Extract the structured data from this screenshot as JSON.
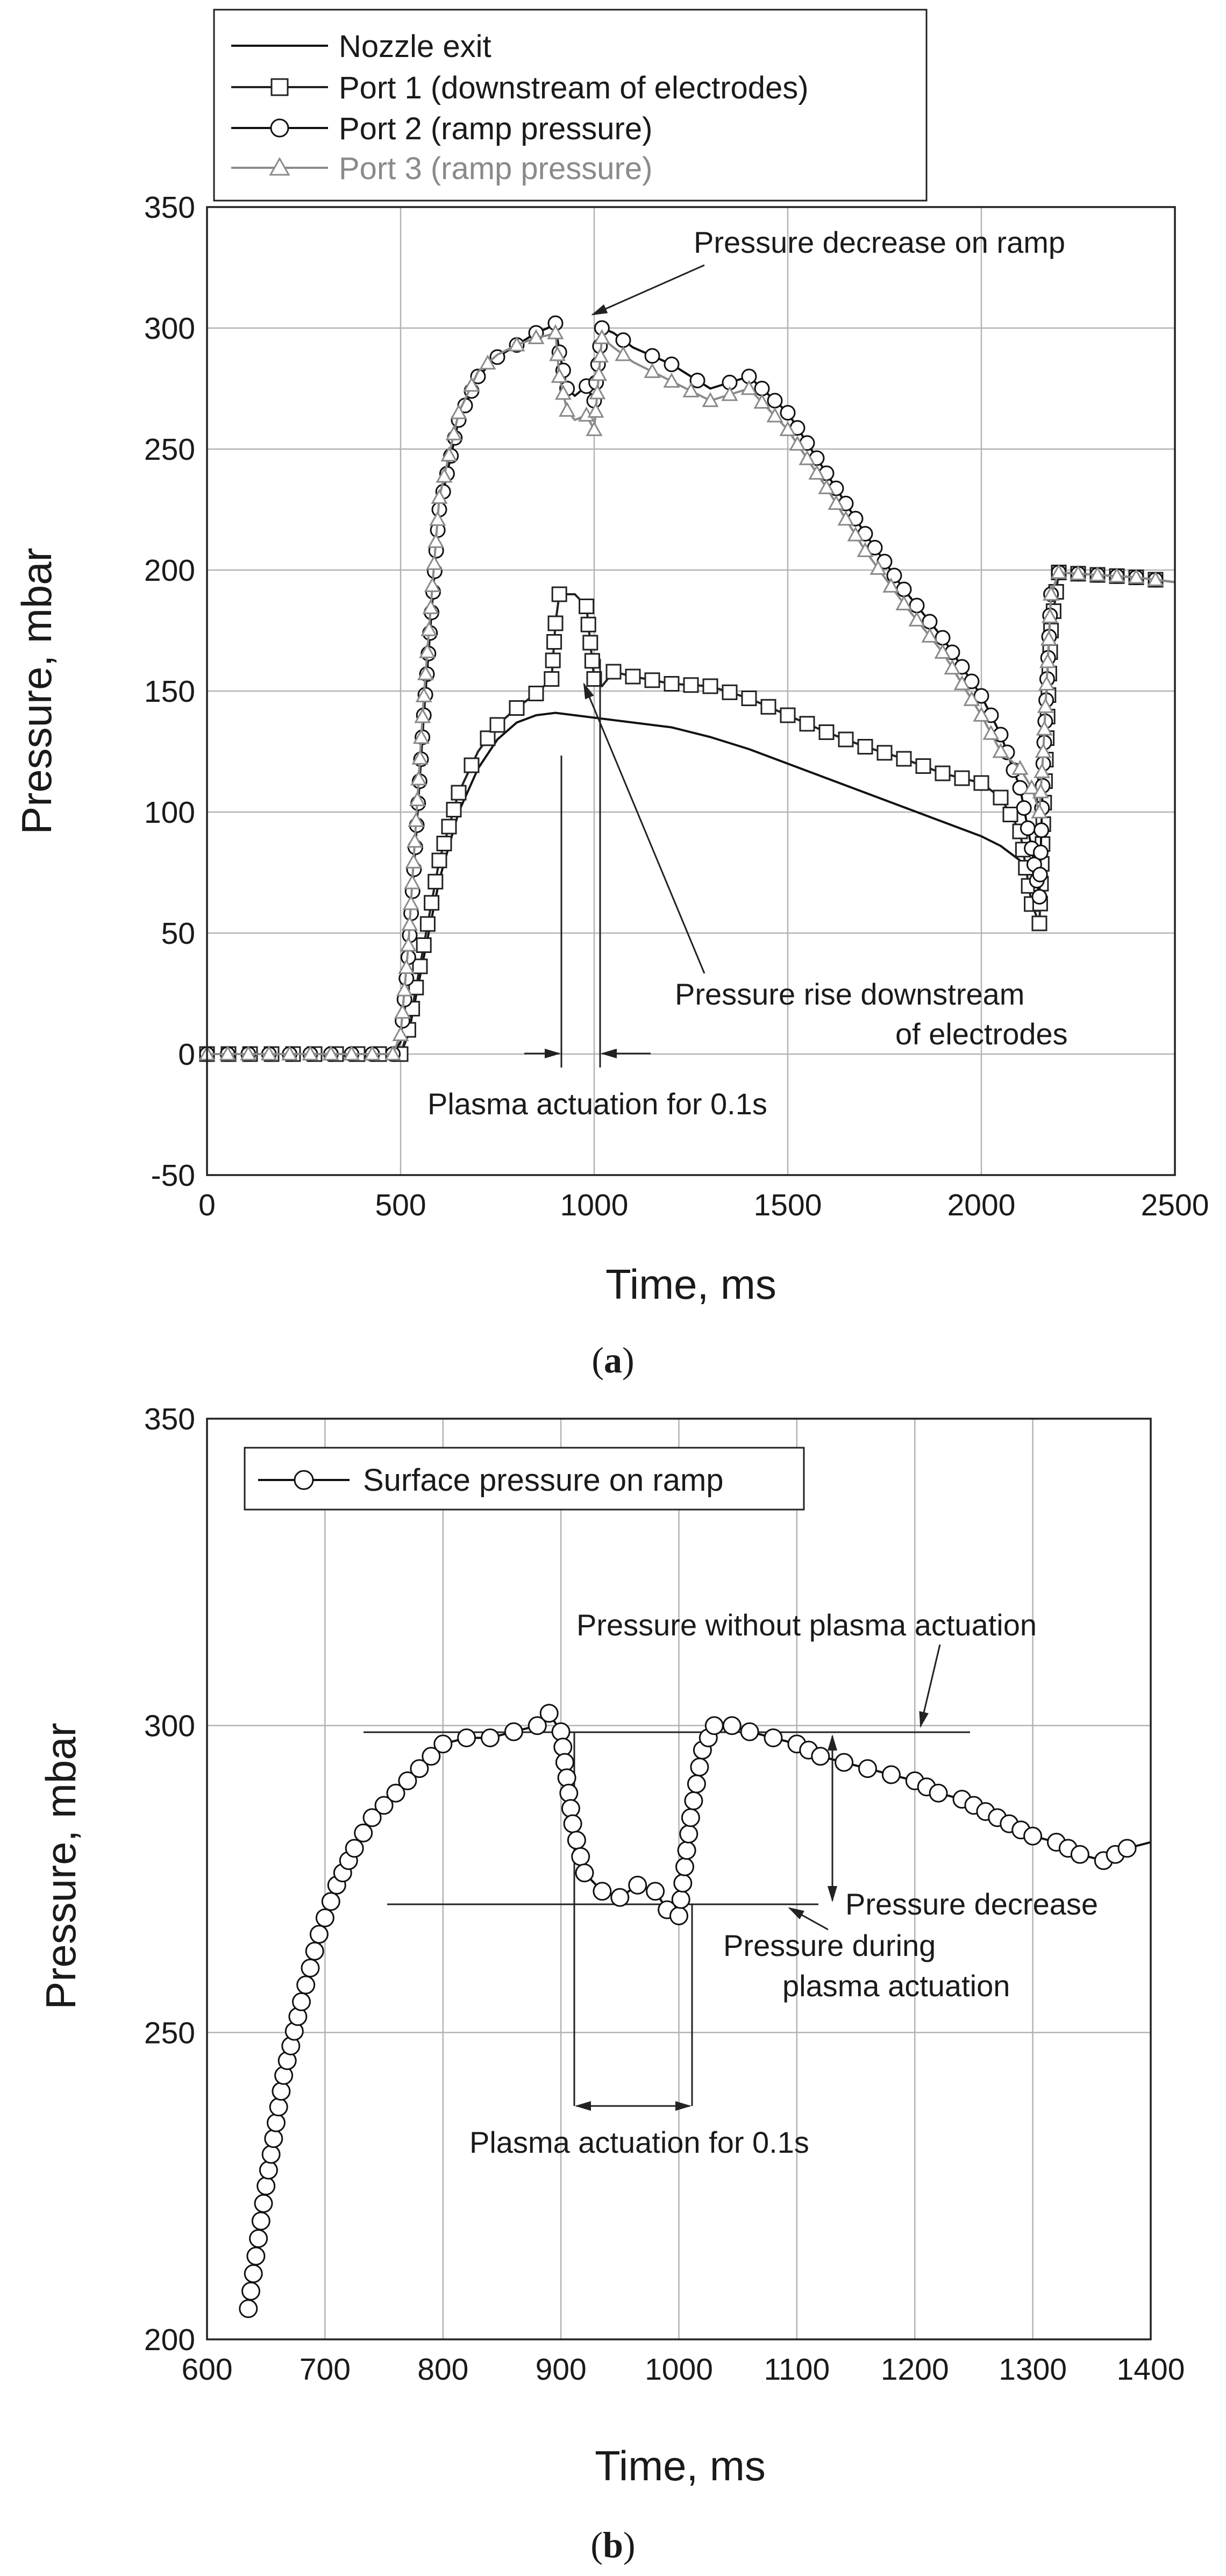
{
  "chart_data": [
    {
      "type": "line",
      "caption_letter": "a",
      "xlabel": "Time, ms",
      "ylabel": "Pressure, mbar",
      "xlim": [
        0,
        2500
      ],
      "ylim": [
        -50,
        350
      ],
      "xticks": [
        0,
        500,
        1000,
        1500,
        2000,
        2500
      ],
      "yticks": [
        -50,
        0,
        50,
        100,
        150,
        200,
        250,
        300,
        350
      ],
      "grid": true,
      "legend_position": "top-left outside",
      "series": [
        {
          "name": "Nozzle exit",
          "marker": "none",
          "color": "#111111",
          "x": [
            0,
            500,
            520,
            560,
            600,
            650,
            700,
            750,
            800,
            850,
            900,
            950,
            1000,
            1100,
            1200,
            1300,
            1400,
            1500,
            1600,
            1700,
            1800,
            1900,
            2000,
            2050,
            2100,
            2120
          ],
          "y": [
            0,
            0,
            8,
            40,
            72,
            100,
            118,
            130,
            137,
            140,
            141,
            140,
            139,
            137,
            135,
            131,
            126,
            120,
            114,
            108,
            102,
            96,
            90,
            86,
            80,
            76
          ]
        },
        {
          "name": "Port 1 (downstream of electrodes)",
          "marker": "square",
          "color": "#222222",
          "x": [
            0,
            500,
            520,
            560,
            600,
            650,
            700,
            750,
            800,
            850,
            890,
            900,
            910,
            950,
            980,
            1000,
            1020,
            1050,
            1100,
            1200,
            1300,
            1400,
            1500,
            1600,
            1700,
            1800,
            1900,
            2000,
            2050,
            2100,
            2130,
            2150,
            2160,
            2180,
            2200,
            2300,
            2400,
            2500
          ],
          "y": [
            0,
            0,
            10,
            45,
            80,
            108,
            125,
            136,
            143,
            149,
            155,
            178,
            190,
            190,
            185,
            155,
            152,
            158,
            156,
            153,
            152,
            147,
            140,
            133,
            127,
            122,
            116,
            112,
            106,
            92,
            62,
            54,
            95,
            175,
            199,
            198,
            197,
            195
          ]
        },
        {
          "name": "Port 2 (ramp pressure)",
          "marker": "circle",
          "color": "#111111",
          "x": [
            0,
            480,
            500,
            520,
            560,
            600,
            650,
            700,
            750,
            800,
            850,
            880,
            900,
            910,
            930,
            950,
            980,
            1000,
            1020,
            1050,
            1100,
            1200,
            1300,
            1400,
            1500,
            1600,
            1700,
            1800,
            1900,
            2000,
            2050,
            2100,
            2130,
            2150,
            2160,
            2180,
            2200,
            2300,
            2400,
            2500
          ],
          "y": [
            0,
            0,
            5,
            40,
            140,
            225,
            262,
            280,
            288,
            293,
            298,
            300,
            302,
            290,
            275,
            272,
            276,
            270,
            300,
            298,
            292,
            285,
            275,
            280,
            265,
            240,
            215,
            192,
            172,
            148,
            132,
            110,
            85,
            65,
            120,
            190,
            199,
            198,
            197,
            195
          ]
        },
        {
          "name": "Port 3 (ramp pressure)",
          "marker": "triangle",
          "color": "#8a8a8a",
          "x": [
            0,
            480,
            500,
            520,
            560,
            600,
            650,
            700,
            750,
            800,
            850,
            880,
            900,
            910,
            930,
            950,
            980,
            1000,
            1020,
            1050,
            1100,
            1200,
            1300,
            1400,
            1500,
            1600,
            1700,
            1800,
            1900,
            2000,
            2050,
            2100,
            2130,
            2150,
            2160,
            2180,
            2200,
            2300,
            2400,
            2500
          ],
          "y": [
            0,
            0,
            8,
            45,
            148,
            230,
            265,
            282,
            289,
            293,
            296,
            297,
            298,
            280,
            266,
            262,
            264,
            258,
            296,
            292,
            286,
            278,
            270,
            275,
            258,
            234,
            208,
            186,
            166,
            140,
            125,
            118,
            110,
            100,
            125,
            190,
            199,
            198,
            197,
            195
          ]
        }
      ],
      "annotations": {
        "pressure_decrease_on_ramp": "Pressure decrease on ramp",
        "pressure_rise_line1": "Pressure rise downstream",
        "pressure_rise_line2": "of electrodes",
        "plasma_actuation": "Plasma actuation for 0.1s"
      }
    },
    {
      "type": "line",
      "caption_letter": "b",
      "xlabel": "Time, ms",
      "ylabel": "Pressure, mbar",
      "xlim": [
        600,
        1400
      ],
      "ylim": [
        200,
        350
      ],
      "xticks": [
        600,
        700,
        800,
        900,
        1000,
        1100,
        1200,
        1300,
        1400
      ],
      "yticks": [
        200,
        250,
        300,
        350
      ],
      "grid": true,
      "legend_position": "top-left",
      "series": [
        {
          "name": "Surface pressure on ramp",
          "marker": "circle",
          "color": "#111111",
          "x": [
            635,
            650,
            665,
            680,
            695,
            710,
            725,
            740,
            760,
            780,
            800,
            820,
            840,
            860,
            880,
            890,
            900,
            910,
            920,
            935,
            950,
            965,
            980,
            990,
            1000,
            1010,
            1020,
            1030,
            1045,
            1060,
            1080,
            1100,
            1120,
            1140,
            1160,
            1180,
            1200,
            1220,
            1240,
            1260,
            1280,
            1300,
            1320,
            1340,
            1360,
            1380,
            1400
          ],
          "y": [
            205,
            225,
            243,
            255,
            266,
            274,
            280,
            285,
            289,
            293,
            297,
            298,
            298,
            299,
            300,
            302,
            299,
            284,
            276,
            273,
            272,
            274,
            273,
            270,
            269,
            285,
            296,
            300,
            300,
            299,
            298,
            297,
            295,
            294,
            293,
            292,
            291,
            289,
            288,
            286,
            284,
            282,
            281,
            279,
            278,
            280,
            281
          ]
        }
      ],
      "annotations": {
        "without_plasma": "Pressure without plasma actuation",
        "pressure_decrease": "Pressure decrease",
        "during_line1": "Pressure during",
        "during_line2": "plasma actuation",
        "plasma_actuation": "Plasma actuation for 0.1s"
      }
    }
  ]
}
